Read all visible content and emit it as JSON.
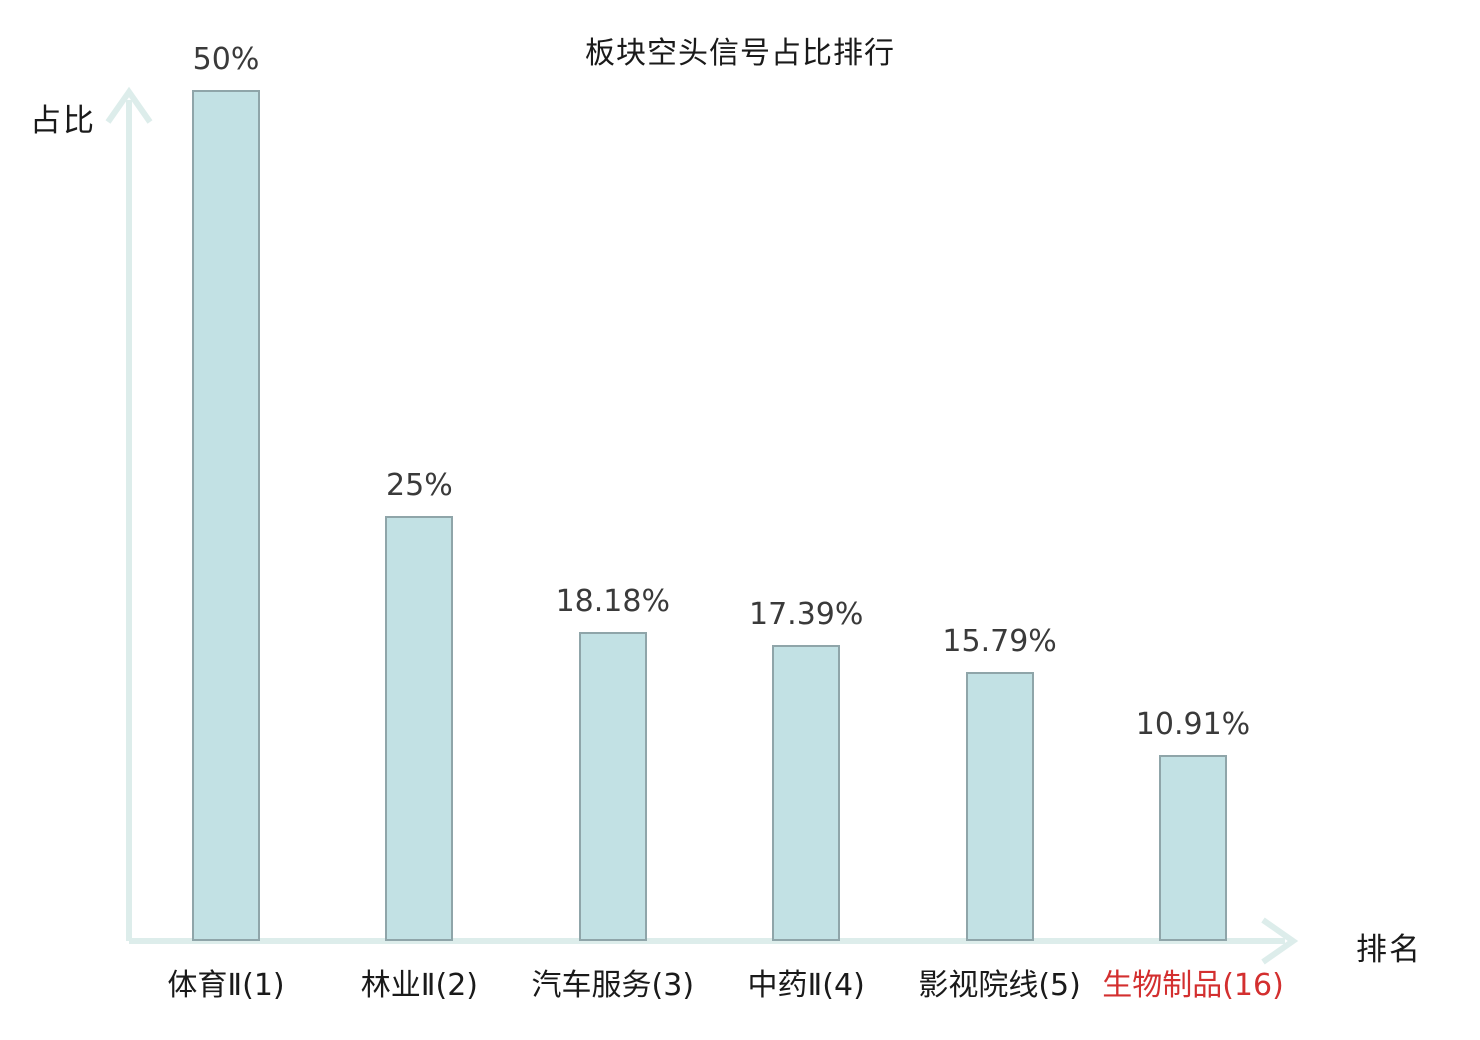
{
  "chart_data": {
    "type": "bar",
    "title": "板块空头信号占比排行",
    "xlabel": "排名",
    "ylabel": "占比",
    "categories": [
      "体育Ⅱ(1)",
      "林业Ⅱ(2)",
      "汽车服务(3)",
      "中药Ⅱ(4)",
      "影视院线(5)",
      "生物制品(16)"
    ],
    "values": [
      50,
      25,
      18.18,
      17.39,
      15.79,
      10.91
    ],
    "value_labels": [
      "50%",
      "25%",
      "18.18%",
      "17.39%",
      "15.79%",
      "10.91%"
    ],
    "highlight_index": 5,
    "ylim": [
      0,
      50
    ],
    "grid": false,
    "legend": "none",
    "colors": {
      "bar_fill": "#c2e1e4",
      "bar_border": "#8fa5a9",
      "axis": "#ddedeb",
      "value_label": "#3a3a3a",
      "category_label": "#1a1a1a",
      "highlight": "#d32f2f"
    }
  }
}
